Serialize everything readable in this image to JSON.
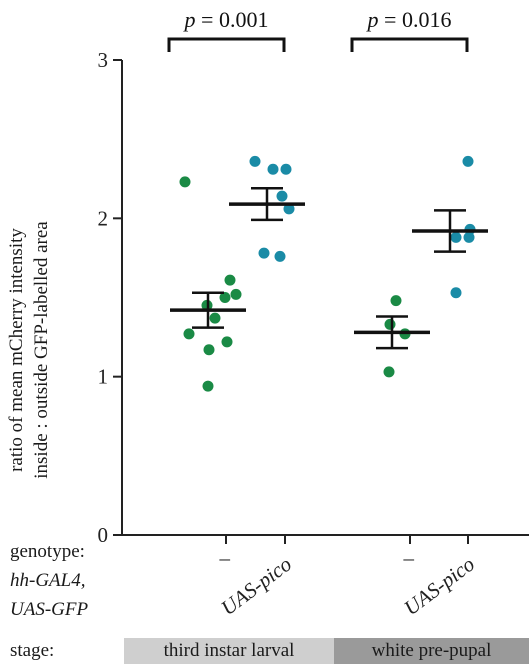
{
  "chart_data": {
    "type": "scatter",
    "ylabel_line1": "ratio of mean mCherry intensity",
    "ylabel_line2": "inside : outside GFP-labelled area",
    "ylim": [
      0,
      3
    ],
    "yticks": [
      0,
      1,
      2,
      3
    ],
    "grid": false,
    "row_labels": {
      "genotype": "genotype:",
      "driver": "hh-GAL4,",
      "reporter": "UAS-GFP",
      "stage": "stage:"
    },
    "categories": [
      "–",
      "UAS-pico",
      "–",
      "UAS-pico"
    ],
    "stages": [
      {
        "label": "third instar larval",
        "color": "#cfcfcf"
      },
      {
        "label": "white pre-pupal",
        "color": "#9a9a9a"
      }
    ],
    "series": [
      {
        "color": "#1a8a45",
        "points": [
          2.23,
          1.61,
          1.52,
          1.5,
          1.45,
          1.37,
          1.27,
          1.22,
          1.17,
          0.94
        ],
        "mean": 1.42,
        "sem_low": 1.31,
        "sem_high": 1.53
      },
      {
        "color": "#1a8ba6",
        "points": [
          2.36,
          2.31,
          2.31,
          2.14,
          2.06,
          1.78,
          1.76
        ],
        "mean": 2.09,
        "sem_low": 1.99,
        "sem_high": 2.19
      },
      {
        "color": "#1a8a45",
        "points": [
          1.48,
          1.33,
          1.27,
          1.03
        ],
        "mean": 1.28,
        "sem_low": 1.18,
        "sem_high": 1.38
      },
      {
        "color": "#1a8ba6",
        "points": [
          2.36,
          1.93,
          1.88,
          1.88,
          1.53
        ],
        "mean": 1.92,
        "sem_low": 1.79,
        "sem_high": 2.05
      }
    ],
    "annotations": [
      {
        "from": 0,
        "to": 1,
        "p_symbol": "p",
        "p_value": " = 0.001"
      },
      {
        "from": 2,
        "to": 3,
        "p_symbol": "p",
        "p_value": " = 0.016"
      }
    ]
  }
}
